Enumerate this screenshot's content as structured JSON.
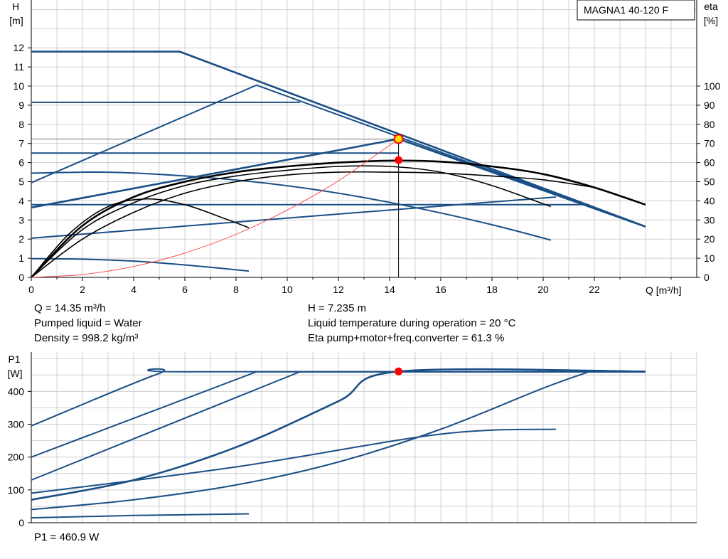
{
  "title_box": "MAGNA1 40-120 F",
  "chart_data": [
    {
      "type": "line",
      "title": "MAGNA1 40-120 F",
      "ylabel": "H",
      "ylabel_unit": "[m]",
      "y2label": "eta",
      "y2label_unit": "[%]",
      "xlabel": "Q [m³/h]",
      "xlim": [
        0,
        26
      ],
      "ylim": [
        0,
        14.5
      ],
      "y2lim": [
        0,
        145
      ],
      "xticks": [
        "0",
        "2",
        "4",
        "6",
        "8",
        "10",
        "12",
        "14",
        "16",
        "18",
        "20",
        "22"
      ],
      "yticks": [
        "0",
        "1",
        "2",
        "3",
        "4",
        "5",
        "6",
        "7",
        "8",
        "9",
        "10",
        "11",
        "12"
      ],
      "y2ticks": [
        "0",
        "10",
        "20",
        "30",
        "40",
        "50",
        "60",
        "70",
        "80",
        "90",
        "100"
      ],
      "grid": true,
      "head_curves": [
        {
          "name": "max",
          "x": [
            0,
            5.8,
            24
          ],
          "y": [
            11.8,
            11.8,
            2.65
          ]
        },
        {
          "name": "constant-pressure-high",
          "x": [
            0,
            8.8,
            24
          ],
          "y": [
            4.95,
            10.05,
            2.65
          ]
        },
        {
          "name": "constant-pressure-mid-high",
          "x": [
            0,
            10.5
          ],
          "y": [
            9.15,
            9.15
          ]
        },
        {
          "name": "proportional-high",
          "x": [
            0,
            14.35,
            24
          ],
          "y": [
            3.65,
            7.235,
            2.65
          ]
        },
        {
          "name": "constant-6.5",
          "x": [
            0,
            14.35
          ],
          "y": [
            6.5,
            6.5
          ]
        },
        {
          "name": "constant-3.8",
          "x": [
            0,
            21.8
          ],
          "y": [
            3.8,
            3.8
          ]
        },
        {
          "name": "proportional-mid",
          "x": [
            0,
            20.5
          ],
          "y": [
            2.05,
            4.2
          ]
        },
        {
          "name": "curve-iii",
          "x": [
            0,
            3,
            6,
            9,
            12,
            15,
            18,
            20.3
          ],
          "y": [
            5.45,
            5.5,
            5.3,
            4.95,
            4.4,
            3.65,
            2.75,
            1.95
          ]
        },
        {
          "name": "curve-i",
          "x": [
            0,
            2,
            4,
            6,
            8.5
          ],
          "y": [
            0.98,
            0.95,
            0.85,
            0.65,
            0.33
          ]
        }
      ],
      "eta_curves": [
        {
          "x": [
            0,
            2,
            4,
            6,
            8,
            10,
            12,
            14,
            16,
            18,
            20,
            22,
            24
          ],
          "y": [
            0,
            27,
            42,
            50,
            55,
            58,
            60,
            61,
            60.5,
            58,
            54,
            47,
            38
          ]
        },
        {
          "x": [
            0,
            2,
            4,
            6,
            8,
            10,
            12,
            14,
            16,
            18,
            20.3
          ],
          "y": [
            0,
            25,
            39,
            48,
            53,
            56,
            58,
            58,
            55,
            48,
            37
          ]
        },
        {
          "x": [
            0,
            2,
            4,
            6,
            8,
            10,
            12,
            14,
            16,
            18,
            20,
            22
          ],
          "y": [
            0,
            20,
            34,
            44,
            50,
            53.5,
            55,
            55,
            54.5,
            53,
            51,
            47
          ]
        },
        {
          "x": [
            0,
            1.5,
            3,
            4.5,
            6,
            7.5,
            8.5
          ],
          "y": [
            0,
            23,
            37,
            41,
            38,
            31,
            26
          ]
        }
      ],
      "system_curve": {
        "x": [
          0,
          2,
          4,
          6,
          8,
          10,
          12,
          14.35
        ],
        "y": [
          0,
          0.15,
          0.57,
          1.27,
          2.25,
          3.52,
          5.05,
          7.235
        ]
      },
      "duty_point": {
        "Q": 14.35,
        "H": 7.235,
        "eta": 61.3
      }
    },
    {
      "type": "line",
      "ylabel": "P1",
      "ylabel_unit": "[W]",
      "xlim": [
        0,
        26
      ],
      "ylim": [
        0,
        520
      ],
      "yticks": [
        "0",
        "100",
        "200",
        "300",
        "400"
      ],
      "grid": true,
      "power_curves": [
        {
          "x": [
            0,
            5,
            6,
            24
          ],
          "y": [
            295,
            455,
            460,
            460
          ]
        },
        {
          "x": [
            0,
            8.8,
            24
          ],
          "y": [
            200,
            460,
            460
          ]
        },
        {
          "x": [
            0,
            10.5,
            24
          ],
          "y": [
            130,
            460,
            460
          ]
        },
        {
          "x": [
            0,
            4,
            8,
            12,
            14.35,
            24
          ],
          "y": [
            70,
            130,
            230,
            370,
            460.9,
            460.9
          ]
        },
        {
          "x": [
            0,
            4,
            8,
            12,
            16,
            20,
            21.8
          ],
          "y": [
            40,
            70,
            115,
            185,
            285,
            410,
            460
          ]
        },
        {
          "x": [
            0,
            8,
            16,
            20.5
          ],
          "y": [
            90,
            170,
            270,
            285
          ]
        },
        {
          "x": [
            0,
            4,
            8.5
          ],
          "y": [
            15,
            22,
            27
          ]
        }
      ],
      "duty_point": {
        "Q": 14.35,
        "P1": 460.9
      }
    }
  ],
  "info": {
    "q": "Q = 14.35 m³/h",
    "h": "H = 7.235 m",
    "liquid": "Pumped liquid = Water",
    "temperature": "Liquid temperature during operation = 20 °C",
    "density": "Density = 998.2 kg/m³",
    "eta": "Eta pump+motor+freq.converter = 61.3 %",
    "p1": "P1 = 460.9 W"
  },
  "colors": {
    "pump_curve": "#1a4f86",
    "eta_curve": "#000000",
    "system_curve": "#ff4040",
    "duty_point": "#ff0000",
    "grid": "#d0d0d0"
  }
}
